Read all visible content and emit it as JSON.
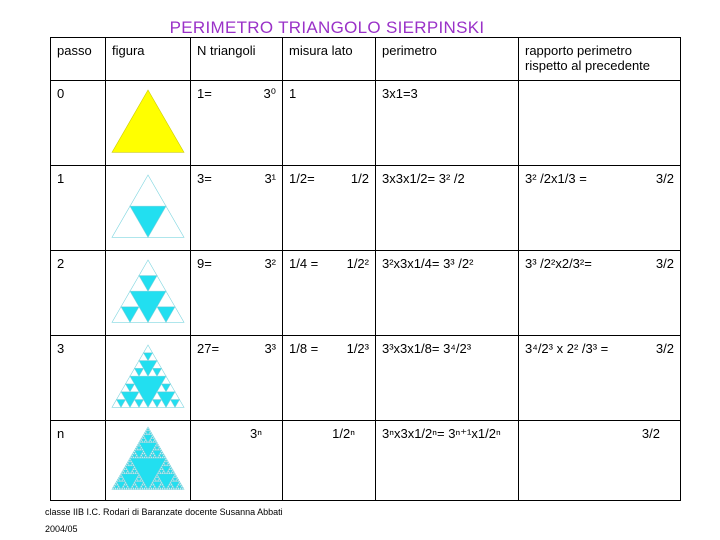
{
  "title": "PERIMETRO TRIANGOLO SIERPINSKI",
  "table": {
    "header": [
      "passo",
      "figura",
      "N triangoli",
      "misura lato",
      "perimetro",
      "rapporto perimetro rispetto al precedente"
    ],
    "rows": [
      {
        "passo": "0",
        "n_triangoli": [
          "1=",
          "3⁰"
        ],
        "misura_lato": [
          "1"
        ],
        "perimetro": [
          "3x1=3"
        ],
        "rapporto": []
      },
      {
        "passo": "1",
        "n_triangoli": [
          "3=",
          "3¹"
        ],
        "misura_lato": [
          "1/2=",
          "1/2"
        ],
        "perimetro": [
          "3x3x1/2= 3² /2"
        ],
        "rapporto": [
          "3² /2x1/3 =",
          "3/2"
        ]
      },
      {
        "passo": "2",
        "n_triangoli": [
          "9=",
          "3²"
        ],
        "misura_lato": [
          "1/4 =",
          "1/2²"
        ],
        "perimetro": [
          "3²x3x1/4= 3³ /2²"
        ],
        "rapporto": [
          "3³ /2²x2/3²=",
          "3/2"
        ]
      },
      {
        "passo": "3",
        "n_triangoli": [
          "27=",
          "3³"
        ],
        "misura_lato": [
          "1/8 =",
          "1/2³"
        ],
        "perimetro": [
          "3³x3x1/8= 3⁴/2³"
        ],
        "rapporto": [
          "3⁴/2³ x 2² /3³ =",
          "3/2"
        ]
      },
      {
        "passo": "n",
        "n_triangoli": [
          "3ⁿ"
        ],
        "misura_lato": [
          "1/2ⁿ"
        ],
        "perimetro": [
          "3ⁿx3x1/2ⁿ= 3ⁿ⁺¹x1/2ⁿ"
        ],
        "rapporto": [
          "3/2"
        ]
      }
    ]
  },
  "footer": {
    "credit": "classe IIB I.C. Rodari di Baranzate docente Susanna Abbati",
    "year": "2004/05"
  }
}
